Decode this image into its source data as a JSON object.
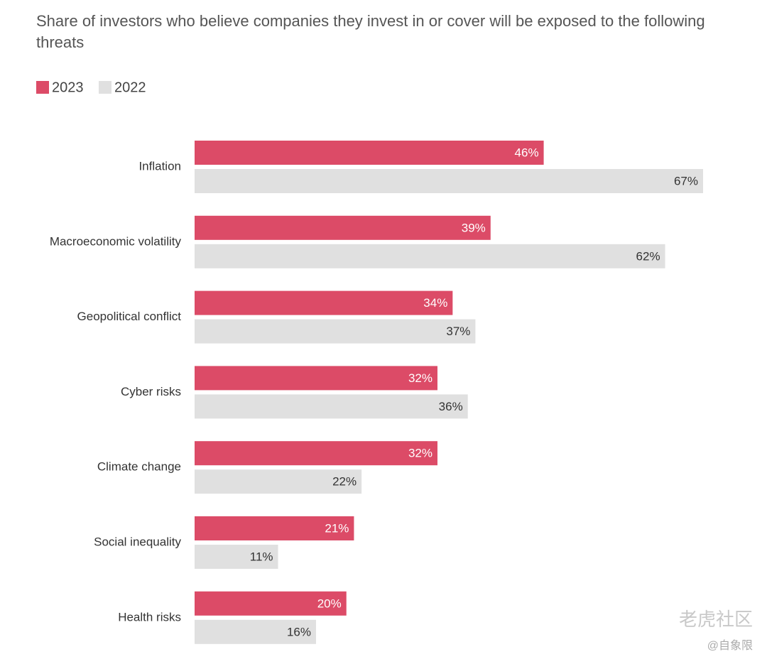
{
  "chart_data": {
    "type": "hbar",
    "title": "Share of investors who believe companies they invest in or cover will be exposed to the following threats",
    "categories": [
      "Inflation",
      "Macroeconomic volatility",
      "Geopolitical conflict",
      "Cyber risks",
      "Climate change",
      "Social inequality",
      "Health risks"
    ],
    "series": [
      {
        "name": "2023",
        "color": "#dc4b67",
        "label_color": "#ffffff",
        "values": [
          46,
          39,
          34,
          32,
          32,
          21,
          20
        ],
        "value_labels": [
          "46%",
          "39%",
          "34%",
          "32%",
          "32%",
          "21%",
          "20%"
        ]
      },
      {
        "name": "2022",
        "color": "#e0e0e0",
        "label_color": "#333333",
        "values": [
          67,
          62,
          37,
          36,
          22,
          11,
          16
        ],
        "value_labels": [
          "67%",
          "62%",
          "37%",
          "36%",
          "22%",
          "11%",
          "16%"
        ]
      }
    ],
    "legend": "top-left",
    "watermark": [
      "老虎社区",
      "@自象限"
    ]
  }
}
